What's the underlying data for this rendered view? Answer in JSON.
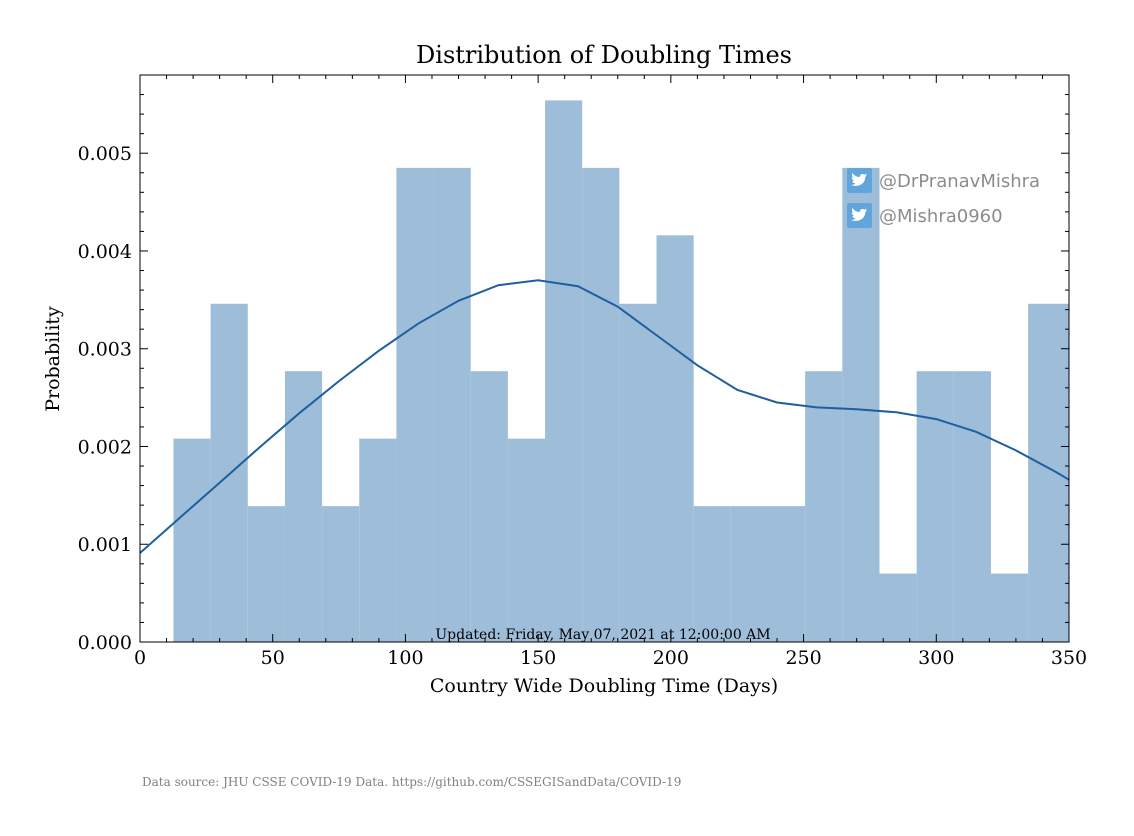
{
  "chart_data": {
    "type": "bar",
    "title": "Distribution of Doubling Times",
    "xlabel": "Country Wide Doubling Time (Days)",
    "ylabel": "Probability",
    "xlim": [
      0,
      350
    ],
    "ylim": [
      0,
      0.0058
    ],
    "xticks": [
      "0",
      "50",
      "100",
      "150",
      "200",
      "250",
      "300",
      "350"
    ],
    "yticks": [
      "0.000",
      "0.001",
      "0.002",
      "0.003",
      "0.004",
      "0.005"
    ],
    "bins": [
      {
        "x0": 12.6,
        "x1": 26.6,
        "value": 0.00208
      },
      {
        "x0": 26.6,
        "x1": 40.6,
        "value": 0.00346
      },
      {
        "x0": 40.6,
        "x1": 54.6,
        "value": 0.00139
      },
      {
        "x0": 54.6,
        "x1": 68.6,
        "value": 0.00277
      },
      {
        "x0": 68.6,
        "x1": 82.6,
        "value": 0.00139
      },
      {
        "x0": 82.6,
        "x1": 96.6,
        "value": 0.00208
      },
      {
        "x0": 96.6,
        "x1": 110.6,
        "value": 0.00485
      },
      {
        "x0": 110.6,
        "x1": 124.6,
        "value": 0.00485
      },
      {
        "x0": 124.6,
        "x1": 138.6,
        "value": 0.00277
      },
      {
        "x0": 138.6,
        "x1": 152.6,
        "value": 0.00208
      },
      {
        "x0": 152.6,
        "x1": 166.6,
        "value": 0.00554
      },
      {
        "x0": 166.6,
        "x1": 180.6,
        "value": 0.00485
      },
      {
        "x0": 180.6,
        "x1": 194.6,
        "value": 0.00346
      },
      {
        "x0": 194.6,
        "x1": 208.6,
        "value": 0.00416
      },
      {
        "x0": 208.6,
        "x1": 222.6,
        "value": 0.00139
      },
      {
        "x0": 222.6,
        "x1": 236.6,
        "value": 0.00139
      },
      {
        "x0": 236.6,
        "x1": 250.6,
        "value": 0.00139
      },
      {
        "x0": 250.6,
        "x1": 264.6,
        "value": 0.00277
      },
      {
        "x0": 264.6,
        "x1": 278.6,
        "value": 0.00485
      },
      {
        "x0": 278.6,
        "x1": 292.6,
        "value": 0.0007
      },
      {
        "x0": 292.6,
        "x1": 306.6,
        "value": 0.00277
      },
      {
        "x0": 306.6,
        "x1": 320.6,
        "value": 0.00277
      },
      {
        "x0": 320.6,
        "x1": 334.6,
        "value": 0.0007
      },
      {
        "x0": 334.6,
        "x1": 350,
        "value": 0.00346
      }
    ],
    "kde": {
      "x": [
        0,
        15,
        30,
        45,
        60,
        75,
        90,
        105,
        120,
        135,
        150,
        165,
        180,
        195,
        210,
        225,
        240,
        255,
        270,
        285,
        300,
        315,
        330,
        345,
        350
      ],
      "y": [
        0.00091,
        0.00127,
        0.00163,
        0.00199,
        0.00234,
        0.00267,
        0.00298,
        0.00326,
        0.00349,
        0.00365,
        0.0037,
        0.00364,
        0.00343,
        0.00313,
        0.00283,
        0.00258,
        0.00245,
        0.0024,
        0.00238,
        0.00235,
        0.00228,
        0.00215,
        0.00196,
        0.00174,
        0.00166
      ]
    },
    "grid": false,
    "bar_color": "#9ebdd9",
    "line_color": "#1f5fa0"
  },
  "annotation": "Updated: Friday, May 07, 2021 at 12:00:00 AM",
  "social": [
    {
      "handle": "@DrPranavMishra",
      "icon": "twitter-icon"
    },
    {
      "handle": "@Mishra0960",
      "icon": "twitter-icon"
    }
  ],
  "footer": "Data source: JHU CSSE COVID-19 Data. https://github.com/CSSEGISandData/COVID-19"
}
